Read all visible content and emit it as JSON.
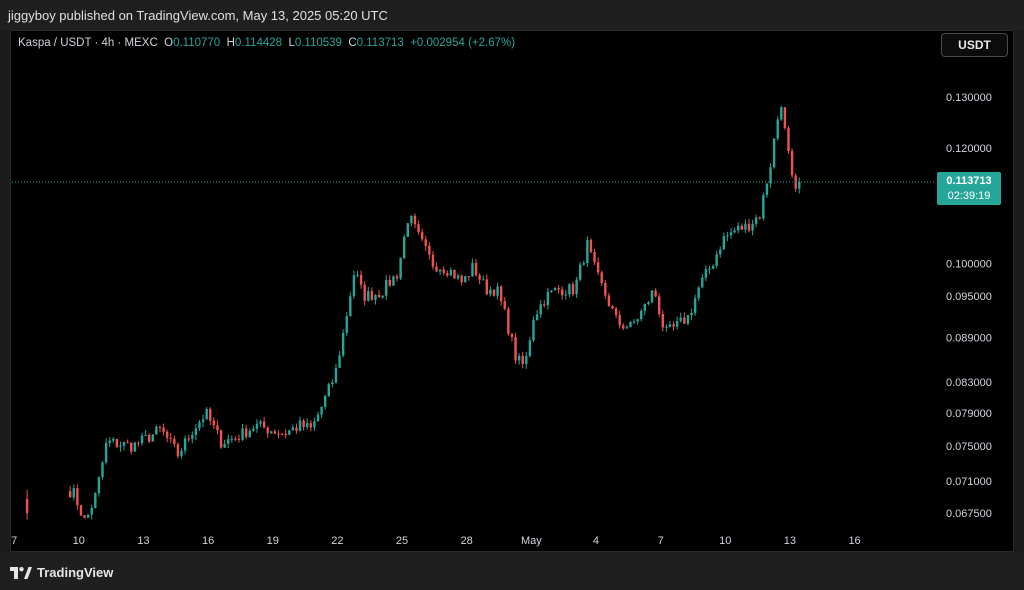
{
  "header": {
    "publisher_line": "jiggyboy published on TradingView.com, May 13, 2025 05:20 UTC"
  },
  "legend": {
    "symbol": "Kaspa / USDT · 4h · MEXC",
    "open_label": "O",
    "open": "0.110770",
    "high_label": "H",
    "high": "0.114428",
    "low_label": "L",
    "low": "0.110539",
    "close_label": "C",
    "close": "0.113713",
    "change": "+0.002954 (+2.67%)"
  },
  "currency_button": "USDT",
  "last_price": {
    "price": "0.113713",
    "countdown": "02:39:19"
  },
  "footer": {
    "brand": "TradingView"
  },
  "colors": {
    "up": "#26a69a",
    "down": "#ef5350",
    "background": "#000000",
    "frame": "#1f1f1f"
  },
  "chart_data": {
    "type": "candlestick",
    "y_scale": "log",
    "yticks": [
      0.13,
      0.12,
      0.1,
      0.095,
      0.089,
      0.083,
      0.079,
      0.075,
      0.071,
      0.0675
    ],
    "ytick_labels": [
      "0.130000",
      "0.120000",
      "0.100000",
      "0.095000",
      "0.089000",
      "0.083000",
      "0.079000",
      "0.075000",
      "0.071000",
      "0.067500"
    ],
    "xticks": [
      {
        "label": "7",
        "day": 7
      },
      {
        "label": "10",
        "day": 10
      },
      {
        "label": "13",
        "day": 13
      },
      {
        "label": "16",
        "day": 16
      },
      {
        "label": "19",
        "day": 19
      },
      {
        "label": "22",
        "day": 22
      },
      {
        "label": "25",
        "day": 25
      },
      {
        "label": "28",
        "day": 28
      },
      {
        "label": "May",
        "day": 31
      },
      {
        "label": "4",
        "day": 34
      },
      {
        "label": "7",
        "day": 37
      },
      {
        "label": "10",
        "day": 40
      },
      {
        "label": "13",
        "day": 43
      },
      {
        "label": "16",
        "day": 46
      }
    ],
    "x_range_days": [
      6.9,
      49.5
    ],
    "y_range": [
      0.0658,
      0.142
    ],
    "last_close": 0.113713,
    "anchors": [
      [
        7.6,
        0.0675
      ],
      [
        9.7,
        0.07
      ],
      [
        10.3,
        0.0665
      ],
      [
        10.8,
        0.0695
      ],
      [
        11.3,
        0.0755
      ],
      [
        12.5,
        0.075
      ],
      [
        13.2,
        0.076
      ],
      [
        13.8,
        0.077
      ],
      [
        14.6,
        0.074
      ],
      [
        15.3,
        0.077
      ],
      [
        15.9,
        0.079
      ],
      [
        16.6,
        0.0755
      ],
      [
        17.3,
        0.076
      ],
      [
        18.2,
        0.0775
      ],
      [
        19.5,
        0.0765
      ],
      [
        20.3,
        0.0775
      ],
      [
        20.8,
        0.077
      ],
      [
        21.3,
        0.08
      ],
      [
        21.9,
        0.084
      ],
      [
        22.3,
        0.09
      ],
      [
        22.8,
        0.099
      ],
      [
        23.2,
        0.095
      ],
      [
        24.0,
        0.0955
      ],
      [
        24.8,
        0.0985
      ],
      [
        25.3,
        0.108
      ],
      [
        25.8,
        0.104
      ],
      [
        26.4,
        0.1
      ],
      [
        27.2,
        0.099
      ],
      [
        27.8,
        0.097
      ],
      [
        28.3,
        0.0995
      ],
      [
        28.9,
        0.096
      ],
      [
        29.4,
        0.096
      ],
      [
        29.8,
        0.092
      ],
      [
        30.3,
        0.086
      ],
      [
        30.7,
        0.085
      ],
      [
        31.1,
        0.092
      ],
      [
        31.7,
        0.095
      ],
      [
        32.2,
        0.096
      ],
      [
        33.0,
        0.096
      ],
      [
        33.6,
        0.103
      ],
      [
        34.0,
        0.0985
      ],
      [
        34.6,
        0.094
      ],
      [
        35.0,
        0.091
      ],
      [
        35.6,
        0.0905
      ],
      [
        36.2,
        0.093
      ],
      [
        36.7,
        0.096
      ],
      [
        37.2,
        0.0895
      ],
      [
        37.7,
        0.0905
      ],
      [
        38.3,
        0.092
      ],
      [
        38.8,
        0.0965
      ],
      [
        39.4,
        0.1
      ],
      [
        39.9,
        0.104
      ],
      [
        40.5,
        0.1055
      ],
      [
        41.0,
        0.106
      ],
      [
        41.6,
        0.108
      ],
      [
        42.1,
        0.117
      ],
      [
        42.4,
        0.125
      ],
      [
        42.6,
        0.129
      ],
      [
        42.8,
        0.122
      ],
      [
        43.0,
        0.117
      ],
      [
        43.2,
        0.111
      ],
      [
        43.5,
        0.1137
      ]
    ]
  }
}
